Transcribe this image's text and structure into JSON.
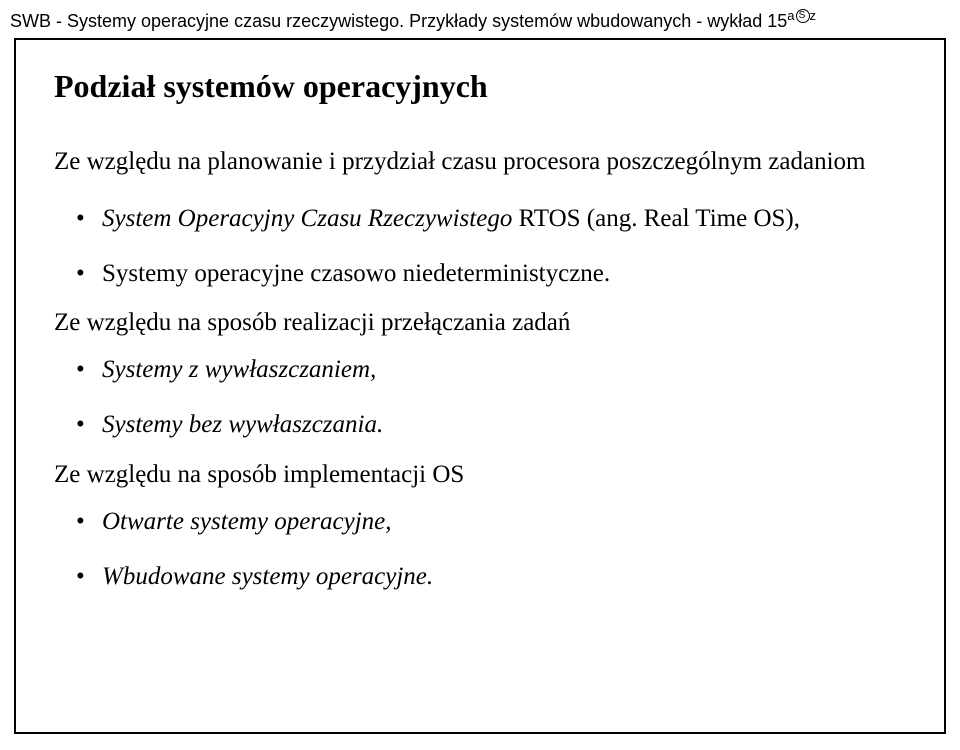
{
  "header": {
    "text_left": "SWB - Systemy operacyjne czasu rzeczywistego. Przykłady systemów wbudowanych - wykład 15",
    "sup_a": "a",
    "sup_s": "S",
    "sup_z": "z"
  },
  "title": "Podział systemów operacyjnych",
  "section1": {
    "intro": "Ze względu na planowanie i przydział czasu procesora poszczególnym zadaniom",
    "bullets": [
      {
        "italic_part": "System Operacyjny Czasu Rzeczywistego",
        "rest": " RTOS (ang. Real Time OS),"
      },
      {
        "plain": "Systemy operacyjne czasowo niedeterministyczne."
      }
    ]
  },
  "section2": {
    "intro": "Ze względu na sposób realizacji przełączania zadań",
    "bullets": [
      {
        "italic_only": "Systemy z wywłaszczaniem,",
        "plain_suffix": ""
      },
      {
        "italic_only": "Systemy bez wywłaszczania.",
        "plain_suffix": ""
      }
    ]
  },
  "section3": {
    "intro": "Ze względu na sposób implementacji OS",
    "bullets": [
      {
        "italic_only": "Otwarte systemy operacyjne,",
        "plain_suffix": ""
      },
      {
        "italic_only": "Wbudowane systemy operacyjne.",
        "plain_suffix": ""
      }
    ]
  }
}
